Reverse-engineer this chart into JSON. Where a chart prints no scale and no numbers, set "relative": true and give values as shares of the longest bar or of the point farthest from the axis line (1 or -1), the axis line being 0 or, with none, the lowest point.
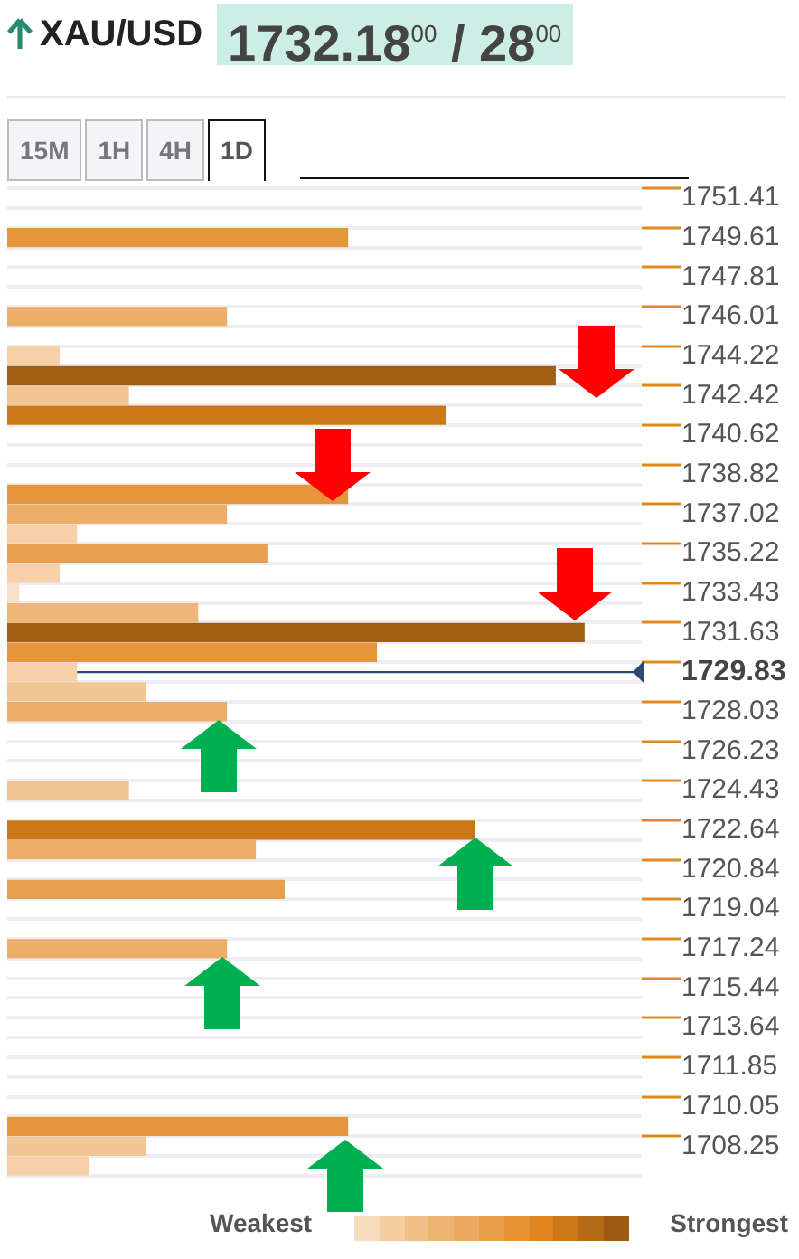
{
  "chart_data": {
    "type": "bar",
    "orientation": "horizontal",
    "relative": true,
    "title": "XAU/USD",
    "subtitle": "1732.18$^{00}$ / 28$^{00}$",
    "annotations": [
      "15M",
      "1H",
      "4H",
      "1D",
      "Weakest",
      "Strongest"
    ],
    "categories": [
      "1751.41",
      null,
      "1749.61",
      null,
      "1747.81",
      null,
      "1746.01",
      null,
      "1744.22",
      null,
      "1742.42",
      null,
      "1740.62",
      null,
      "1738.82",
      null,
      "1737.02",
      null,
      "1735.22",
      null,
      "1733.43",
      null,
      "1731.63",
      null,
      "1729.83",
      null,
      "1728.03",
      null,
      "1726.23",
      null,
      "1724.43",
      null,
      "1722.64",
      null,
      "1720.84",
      null,
      "1719.04",
      null,
      "1717.24",
      null,
      "1715.44",
      null,
      "1713.64",
      null,
      "1711.85",
      null,
      "1710.05",
      null,
      "1708.25",
      null
    ],
    "values": [
      null,
      null,
      0.59,
      null,
      null,
      null,
      0.38,
      null,
      0.09,
      0.95,
      0.21,
      0.76,
      null,
      null,
      null,
      0.59,
      0.38,
      0.12,
      0.45,
      0.09,
      0.02,
      0.33,
      1,
      0.64,
      0.12,
      0.24,
      0.38,
      null,
      null,
      null,
      0.21,
      null,
      0.81,
      0.43,
      null,
      0.48,
      null,
      null,
      0.38,
      null,
      null,
      null,
      null,
      null,
      null,
      null,
      null,
      0.59,
      0.24,
      0.14
    ],
    "colors": [
      null,
      null,
      "#e6963a",
      null,
      null,
      null,
      "#ecae68",
      null,
      "#f5d0a8",
      "#a05e14",
      "#f2c694",
      "#cc7818",
      null,
      null,
      null,
      "#e6963a",
      "#ecae68",
      "#f5d0a8",
      "#e8a050",
      "#f5d0a8",
      "#f8e0c8",
      "#eeb678",
      "#a05e14",
      "#e6963a",
      "#f5d0a8",
      "#f2c694",
      "#ecae68",
      null,
      null,
      null,
      "#f2c694",
      null,
      "#cc7818",
      "#ecae68",
      null,
      "#e8a050",
      null,
      null,
      "#ecae68",
      null,
      null,
      null,
      null,
      null,
      null,
      null,
      null,
      "#e6963a",
      "#f2c694",
      "#f5d0a8"
    ],
    "ref_lines": [
      {
        "axis": "y",
        "value": "1729.83",
        "color": "#2c4a6e"
      }
    ],
    "grid": "y",
    "legend": false
  }
}
